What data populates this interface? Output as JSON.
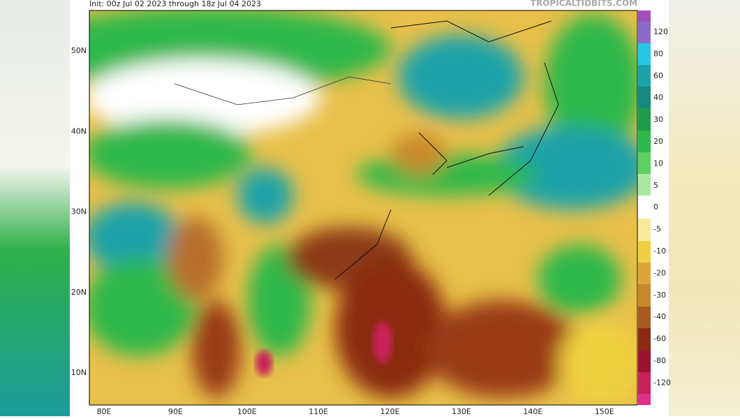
{
  "header": {
    "title": "Init: 00z Jul 02 2023 through 18z Jul 04 2023",
    "source": "TROPICALTIDBITS.COM"
  },
  "map": {
    "latitude_labels": [
      "50N",
      "40N",
      "30N",
      "20N",
      "10N"
    ],
    "longitude_labels": [
      "80E",
      "90E",
      "100E",
      "110E",
      "120E",
      "130E",
      "140E",
      "150E"
    ]
  },
  "colorbar": {
    "labels": [
      "120",
      "80",
      "60",
      "40",
      "30",
      "20",
      "10",
      "5",
      "0",
      "-5",
      "-10",
      "-20",
      "-30",
      "-40",
      "-60",
      "-80",
      "-120"
    ]
  }
}
